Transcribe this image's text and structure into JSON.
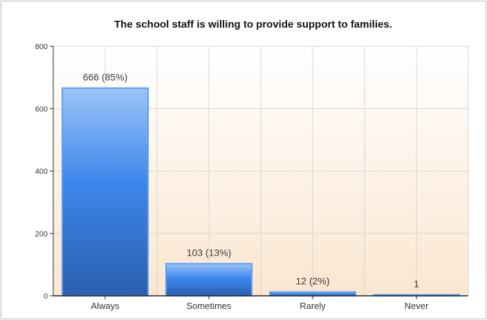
{
  "chart_data": {
    "type": "bar",
    "title": "The school staff is willing to provide support to families.",
    "xlabel": "",
    "ylabel": "",
    "categories": [
      "Always",
      "Sometimes",
      "Rarely",
      "Never"
    ],
    "values": [
      666,
      103,
      12,
      1
    ],
    "data_labels": [
      "666 (85%)",
      "103 (13%)",
      "12 (2%)",
      "1"
    ],
    "ylim": [
      0,
      800
    ],
    "yticks": [
      0,
      200,
      400,
      600,
      800
    ],
    "grid": true,
    "legend": "none",
    "colors": {
      "bar_top": "#9cc4f7",
      "bar_mid": "#3f87ec",
      "bar_bottom": "#2a5fae",
      "bar_border": "#5aa0f2",
      "plot_bg_top": "#ffffff",
      "plot_bg_bottom": "#fbe6d0",
      "grid": "#d6d6d6",
      "axis": "#222222"
    }
  }
}
